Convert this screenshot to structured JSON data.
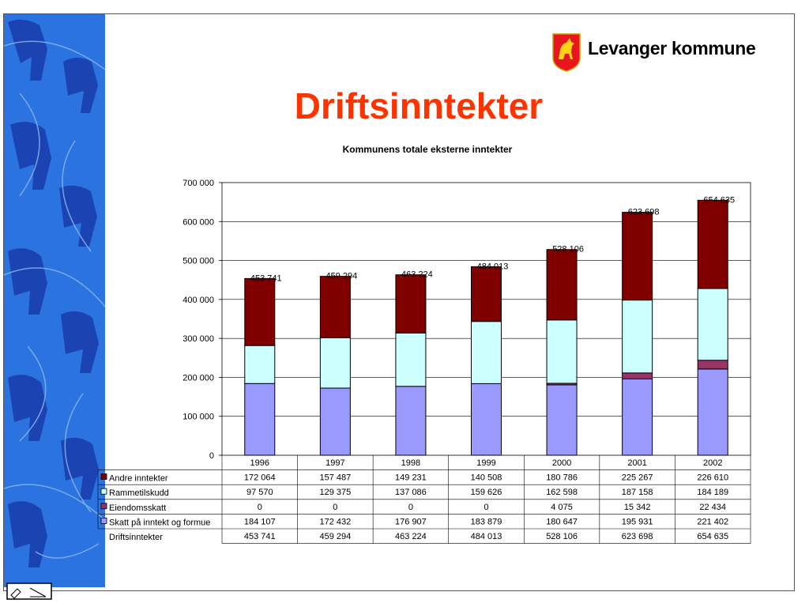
{
  "brand": {
    "name": "Levanger kommune",
    "logo_icon": "horse-shield-icon"
  },
  "slide": {
    "title": "Driftsinntekter"
  },
  "side_panel": {
    "icon": "horse-pattern",
    "background_color": "#2a73e0"
  },
  "chart_data": {
    "type": "bar",
    "stacked": true,
    "title": "Kommunens totale eksterne inntekter",
    "categories": [
      "1996",
      "1997",
      "1998",
      "1999",
      "2000",
      "2001",
      "2002"
    ],
    "series": [
      {
        "name": "Skatt på inntekt og formue",
        "color": "#9999ff",
        "values": [
          184107,
          172432,
          176907,
          183879,
          180647,
          195931,
          221402
        ],
        "labels": [
          "184 107",
          "172 432",
          "176 907",
          "183 879",
          "180 647",
          "195 931",
          "221 402"
        ]
      },
      {
        "name": "Eiendomsskatt",
        "color": "#993366",
        "values": [
          0,
          0,
          0,
          0,
          4075,
          15342,
          22434
        ],
        "labels": [
          "0",
          "0",
          "0",
          "0",
          "4 075",
          "15 342",
          "22 434"
        ]
      },
      {
        "name": "Rammetilskudd",
        "color": "#ccffff",
        "values": [
          97570,
          129375,
          137086,
          159626,
          162598,
          187158,
          184189
        ],
        "labels": [
          "97 570",
          "129 375",
          "137 086",
          "159 626",
          "162 598",
          "187 158",
          "184 189"
        ]
      },
      {
        "name": "Andre inntekter",
        "color": "#800000",
        "values": [
          172064,
          157487,
          149231,
          140508,
          180786,
          225267,
          226610
        ],
        "labels": [
          "172 064",
          "157 487",
          "149 231",
          "140 508",
          "180 786",
          "225 267",
          "226 610"
        ]
      }
    ],
    "totals": {
      "name": "Driftsinntekter",
      "values": [
        453741,
        459294,
        463224,
        484013,
        528106,
        623698,
        654635
      ],
      "labels": [
        "453 741",
        "459 294",
        "463 224",
        "484 013",
        "528 106",
        "623 698",
        "654 635"
      ]
    },
    "yticks": [
      "0",
      "100 000",
      "200 000",
      "300 000",
      "400 000",
      "500 000",
      "600 000",
      "700 000"
    ],
    "ylim": [
      0,
      700000
    ],
    "grid": true,
    "legend": "data-table",
    "table_row_order": [
      "Andre inntekter",
      "Rammetilskudd",
      "Eiendomsskatt",
      "Skatt på inntekt og formue",
      "Driftsinntekter"
    ]
  }
}
